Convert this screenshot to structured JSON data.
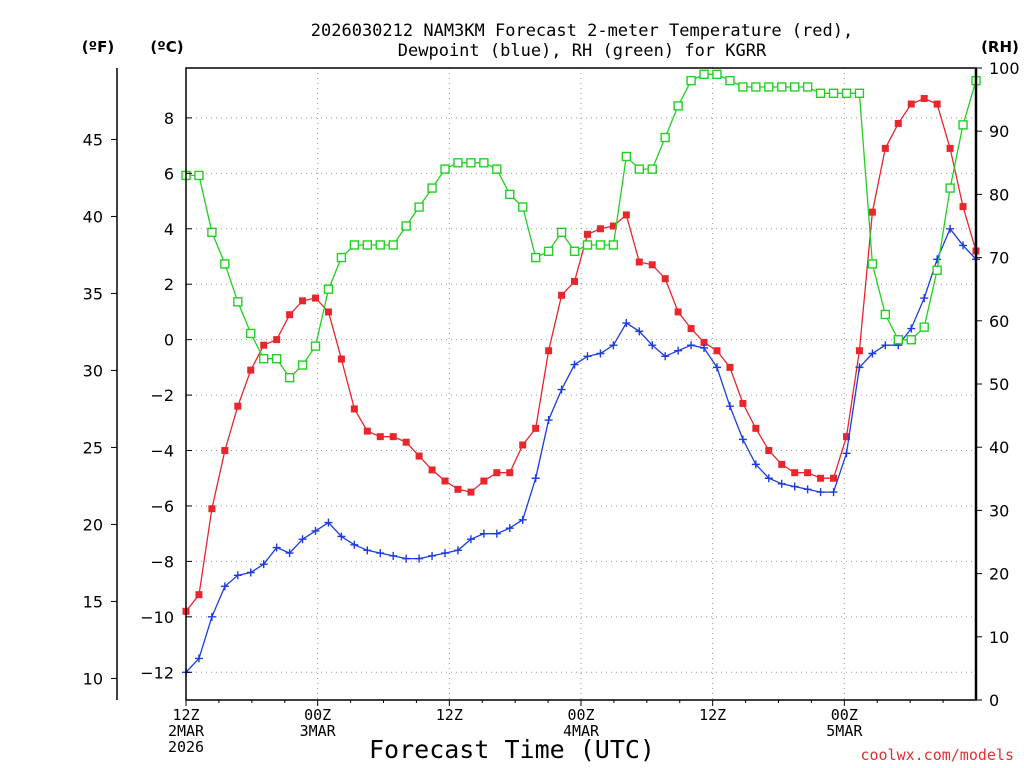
{
  "chart_data": {
    "type": "line",
    "title_line1": "2026030212 NAM3KM Forecast 2-meter Temperature (red),",
    "title_line2": "Dewpoint (blue), RH (green) for KGRR",
    "xlabel": "Forecast Time (UTC)",
    "credit": "coolwx.com/models",
    "unit_f": "(ºF)",
    "unit_c": "(ºC)",
    "unit_rh": "(RH)",
    "x_hours_range": [
      0,
      72
    ],
    "x_ticks": [
      {
        "hour": 0,
        "line1": "12Z",
        "line2": "2MAR",
        "line3": "2026"
      },
      {
        "hour": 12,
        "line1": "00Z",
        "line2": "3MAR",
        "line3": ""
      },
      {
        "hour": 24,
        "line1": "12Z",
        "line2": "",
        "line3": ""
      },
      {
        "hour": 36,
        "line1": "00Z",
        "line2": "4MAR",
        "line3": ""
      },
      {
        "hour": 48,
        "line1": "12Z",
        "line2": "",
        "line3": ""
      },
      {
        "hour": 60,
        "line1": "00Z",
        "line2": "5MAR",
        "line3": ""
      }
    ],
    "c_axis": {
      "range": [
        -13.0,
        9.8
      ],
      "ticks": [
        -12,
        -10,
        -8,
        -6,
        -4,
        -2,
        0,
        2,
        4,
        6,
        8
      ],
      "tick_labels": [
        "−12",
        "−10",
        "−8",
        "−6",
        "−4",
        "−2",
        "0",
        "2",
        "4",
        "6",
        "8"
      ]
    },
    "f_axis": {
      "ticks": [
        10,
        15,
        20,
        25,
        30,
        35,
        40,
        45
      ],
      "tick_labels": [
        "10",
        "15",
        "20",
        "25",
        "30",
        "35",
        "40",
        "45"
      ]
    },
    "rh_axis": {
      "range": [
        0,
        100
      ],
      "ticks": [
        0,
        10,
        20,
        30,
        40,
        50,
        60,
        70,
        80,
        90,
        100
      ],
      "tick_labels": [
        "0",
        "10",
        "20",
        "30",
        "40",
        "50",
        "60",
        "70",
        "80",
        "90",
        "100"
      ]
    },
    "series": [
      {
        "name": "2-meter Temperature",
        "units": "C",
        "color": "#e8262c",
        "marker": "filled-square",
        "values": [
          -9.8,
          -9.2,
          -6.1,
          -4.0,
          -2.4,
          -1.1,
          -0.2,
          0.0,
          0.9,
          1.4,
          1.5,
          1.0,
          -0.7,
          -2.5,
          -3.3,
          -3.5,
          -3.5,
          -3.7,
          -4.2,
          -4.7,
          -5.1,
          -5.4,
          -5.5,
          -5.1,
          -4.8,
          -4.8,
          -3.8,
          -3.2,
          -0.4,
          1.6,
          2.1,
          3.8,
          4.0,
          4.1,
          4.5,
          2.8,
          2.7,
          2.2,
          1.0,
          0.4,
          -0.1,
          -0.4,
          -1.0,
          -2.3,
          -3.2,
          -4.0,
          -4.5,
          -4.8,
          -4.8,
          -5.0,
          -5.0,
          -3.5,
          -0.4,
          4.6,
          6.9,
          7.8,
          8.5,
          8.7,
          8.5,
          6.9,
          4.8,
          3.2
        ]
      },
      {
        "name": "Dewpoint",
        "units": "C",
        "color": "#1a3ce0",
        "marker": "plus",
        "values": [
          -12.0,
          -11.5,
          -10.0,
          -8.9,
          -8.5,
          -8.4,
          -8.1,
          -7.5,
          -7.7,
          -7.2,
          -6.9,
          -6.6,
          -7.1,
          -7.4,
          -7.6,
          -7.7,
          -7.8,
          -7.9,
          -7.9,
          -7.8,
          -7.7,
          -7.6,
          -7.2,
          -7.0,
          -7.0,
          -6.8,
          -6.5,
          -5.0,
          -2.9,
          -1.8,
          -0.9,
          -0.6,
          -0.5,
          -0.2,
          0.6,
          0.3,
          -0.2,
          -0.6,
          -0.4,
          -0.2,
          -0.3,
          -1.0,
          -2.4,
          -3.6,
          -4.5,
          -5.0,
          -5.2,
          -5.3,
          -5.4,
          -5.5,
          -5.5,
          -4.1,
          -1.0,
          -0.5,
          -0.2,
          -0.2,
          0.4,
          1.5,
          2.9,
          4.0,
          3.4,
          2.9
        ]
      },
      {
        "name": "RH",
        "units": "%",
        "color": "#22d022",
        "marker": "open-square",
        "values": [
          83,
          83,
          74,
          69,
          63,
          58,
          54,
          54,
          51,
          53,
          56,
          65,
          70,
          72,
          72,
          72,
          72,
          75,
          78,
          81,
          84,
          85,
          85,
          85,
          84,
          80,
          78,
          70,
          71,
          74,
          71,
          72,
          72,
          72,
          86,
          84,
          84,
          89,
          94,
          98,
          99,
          99,
          98,
          97,
          97,
          97,
          97,
          97,
          97,
          96,
          96,
          96,
          96,
          69,
          61,
          57,
          57,
          59,
          68,
          81,
          91,
          98
        ]
      }
    ]
  }
}
